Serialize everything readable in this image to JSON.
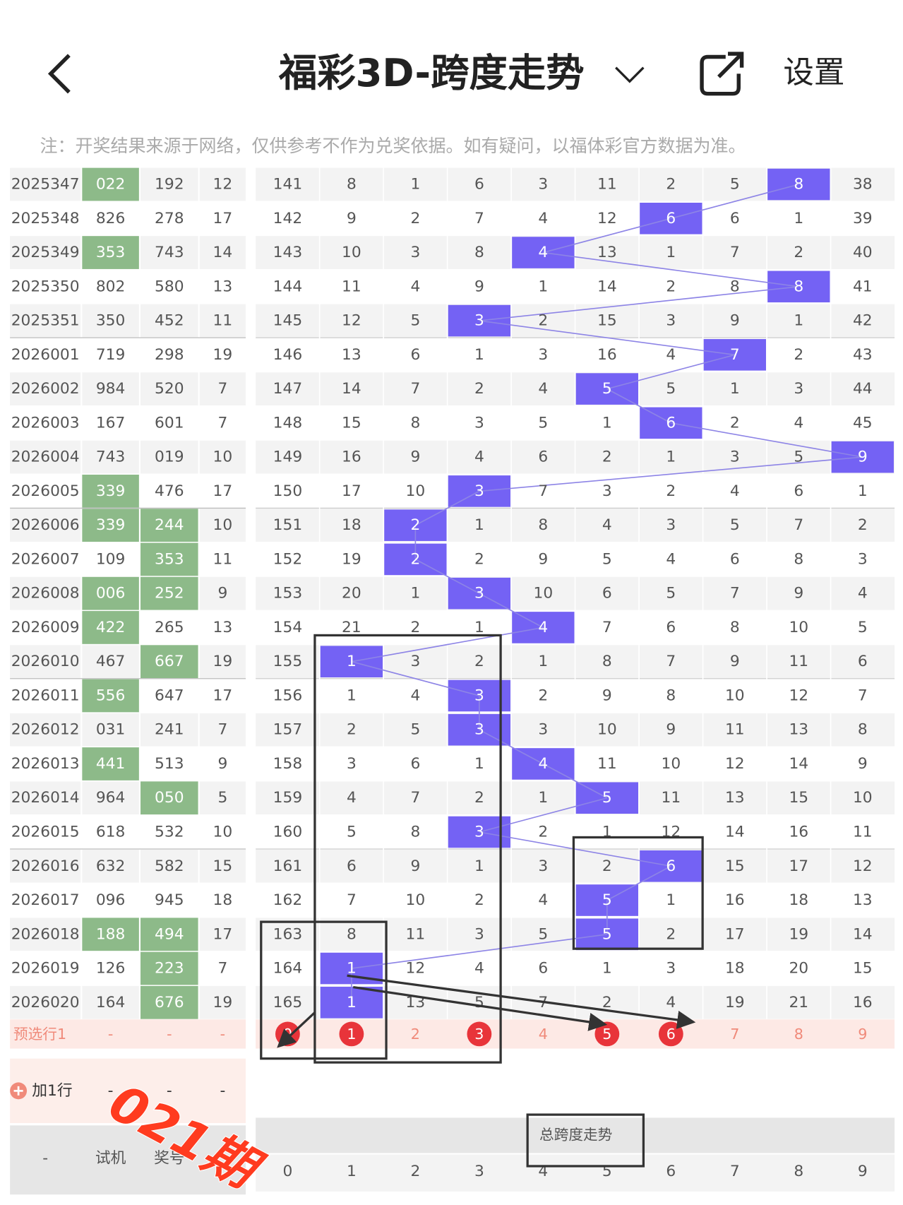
{
  "header": {
    "title": "福彩3D-跨度走势",
    "settings": "设置"
  },
  "note": "注：开奖结果来源于网络，仅供参考不作为兑奖依据。如有疑问，以福体彩官方数据为准。",
  "table": {
    "rows": [
      {
        "period": "2025347",
        "trial": "022",
        "draw": "192",
        "sum": 12,
        "cells": [
          141,
          8,
          1,
          6,
          3,
          11,
          2,
          5,
          8,
          38
        ],
        "hit": 8,
        "green": [
          "trial"
        ]
      },
      {
        "period": "2025348",
        "trial": "826",
        "draw": "278",
        "sum": 17,
        "cells": [
          142,
          9,
          2,
          7,
          4,
          12,
          6,
          6,
          1,
          39
        ],
        "hit": 6,
        "green": []
      },
      {
        "period": "2025349",
        "trial": "353",
        "draw": "743",
        "sum": 14,
        "cells": [
          143,
          10,
          3,
          8,
          4,
          13,
          1,
          7,
          2,
          40
        ],
        "hit": 4,
        "green": [
          "trial"
        ]
      },
      {
        "period": "2025350",
        "trial": "802",
        "draw": "580",
        "sum": 13,
        "cells": [
          144,
          11,
          4,
          9,
          1,
          14,
          2,
          8,
          8,
          41
        ],
        "hit": 8,
        "green": []
      },
      {
        "period": "2025351",
        "trial": "350",
        "draw": "452",
        "sum": 11,
        "cells": [
          145,
          12,
          5,
          3,
          2,
          15,
          3,
          9,
          1,
          42
        ],
        "hit": 3,
        "green": []
      },
      {
        "period": "2026001",
        "trial": "719",
        "draw": "298",
        "sum": 19,
        "cells": [
          146,
          13,
          6,
          1,
          3,
          16,
          4,
          7,
          2,
          43
        ],
        "hit": 7,
        "green": []
      },
      {
        "period": "2026002",
        "trial": "984",
        "draw": "520",
        "sum": 7,
        "cells": [
          147,
          14,
          7,
          2,
          4,
          5,
          5,
          1,
          3,
          44
        ],
        "hit": 5,
        "green": []
      },
      {
        "period": "2026003",
        "trial": "167",
        "draw": "601",
        "sum": 7,
        "cells": [
          148,
          15,
          8,
          3,
          5,
          1,
          6,
          2,
          4,
          45
        ],
        "hit": 6,
        "green": []
      },
      {
        "period": "2026004",
        "trial": "743",
        "draw": "019",
        "sum": 10,
        "cells": [
          149,
          16,
          9,
          4,
          6,
          2,
          1,
          3,
          5,
          9
        ],
        "hit": 9,
        "green": []
      },
      {
        "period": "2026005",
        "trial": "339",
        "draw": "476",
        "sum": 17,
        "cells": [
          150,
          17,
          10,
          3,
          7,
          3,
          2,
          4,
          6,
          1
        ],
        "hit": 3,
        "green": [
          "trial"
        ]
      },
      {
        "period": "2026006",
        "trial": "339",
        "draw": "244",
        "sum": 10,
        "cells": [
          151,
          18,
          2,
          1,
          8,
          4,
          3,
          5,
          7,
          2
        ],
        "hit": 2,
        "green": [
          "trial",
          "draw"
        ]
      },
      {
        "period": "2026007",
        "trial": "109",
        "draw": "353",
        "sum": 11,
        "cells": [
          152,
          19,
          2,
          2,
          9,
          5,
          4,
          6,
          8,
          3
        ],
        "hit": 2,
        "green": [
          "draw"
        ]
      },
      {
        "period": "2026008",
        "trial": "006",
        "draw": "252",
        "sum": 9,
        "cells": [
          153,
          20,
          1,
          3,
          10,
          6,
          5,
          7,
          9,
          4
        ],
        "hit": 3,
        "green": [
          "trial",
          "draw"
        ]
      },
      {
        "period": "2026009",
        "trial": "422",
        "draw": "265",
        "sum": 13,
        "cells": [
          154,
          21,
          2,
          1,
          4,
          7,
          6,
          8,
          10,
          5
        ],
        "hit": 4,
        "green": [
          "trial"
        ]
      },
      {
        "period": "2026010",
        "trial": "467",
        "draw": "667",
        "sum": 19,
        "cells": [
          155,
          1,
          3,
          2,
          1,
          8,
          7,
          9,
          11,
          6
        ],
        "hit": 1,
        "green": [
          "draw"
        ]
      },
      {
        "period": "2026011",
        "trial": "556",
        "draw": "647",
        "sum": 17,
        "cells": [
          156,
          1,
          4,
          3,
          2,
          9,
          8,
          10,
          12,
          7
        ],
        "hit": 3,
        "green": [
          "trial"
        ]
      },
      {
        "period": "2026012",
        "trial": "031",
        "draw": "241",
        "sum": 7,
        "cells": [
          157,
          2,
          5,
          3,
          3,
          10,
          9,
          11,
          13,
          8
        ],
        "hit": 3,
        "green": []
      },
      {
        "period": "2026013",
        "trial": "441",
        "draw": "513",
        "sum": 9,
        "cells": [
          158,
          3,
          6,
          1,
          4,
          11,
          10,
          12,
          14,
          9
        ],
        "hit": 4,
        "green": [
          "trial"
        ]
      },
      {
        "period": "2026014",
        "trial": "964",
        "draw": "050",
        "sum": 5,
        "cells": [
          159,
          4,
          7,
          2,
          1,
          5,
          11,
          13,
          15,
          10
        ],
        "hit": 5,
        "green": [
          "draw"
        ]
      },
      {
        "period": "2026015",
        "trial": "618",
        "draw": "532",
        "sum": 10,
        "cells": [
          160,
          5,
          8,
          3,
          2,
          1,
          12,
          14,
          16,
          11
        ],
        "hit": 3,
        "green": []
      },
      {
        "period": "2026016",
        "trial": "632",
        "draw": "582",
        "sum": 15,
        "cells": [
          161,
          6,
          9,
          1,
          3,
          2,
          6,
          15,
          17,
          12
        ],
        "hit": 6,
        "green": []
      },
      {
        "period": "2026017",
        "trial": "096",
        "draw": "945",
        "sum": 18,
        "cells": [
          162,
          7,
          10,
          2,
          4,
          5,
          1,
          16,
          18,
          13
        ],
        "hit": 5,
        "green": []
      },
      {
        "period": "2026018",
        "trial": "188",
        "draw": "494",
        "sum": 17,
        "cells": [
          163,
          8,
          11,
          3,
          5,
          5,
          2,
          17,
          19,
          14
        ],
        "hit": 5,
        "green": [
          "trial",
          "draw"
        ]
      },
      {
        "period": "2026019",
        "trial": "126",
        "draw": "223",
        "sum": 7,
        "cells": [
          164,
          1,
          12,
          4,
          6,
          1,
          3,
          18,
          20,
          15
        ],
        "hit": 1,
        "green": [
          "draw"
        ]
      },
      {
        "period": "2026020",
        "trial": "164",
        "draw": "676",
        "sum": 19,
        "cells": [
          165,
          1,
          13,
          5,
          7,
          2,
          4,
          19,
          21,
          16
        ],
        "hit": 1,
        "green": [
          "draw"
        ]
      }
    ]
  },
  "preselect": {
    "label": "预选行1",
    "values": [
      "-",
      "-",
      "-"
    ],
    "digits": [
      0,
      1,
      2,
      3,
      4,
      5,
      6,
      7,
      8,
      9
    ],
    "selected": [
      0,
      1,
      3,
      5,
      6
    ]
  },
  "add_row": {
    "label": "加1行",
    "values": [
      "-",
      "-",
      "-"
    ]
  },
  "footer": {
    "labels": [
      "-",
      "试机",
      "奖号"
    ],
    "banner": "总跨度走势",
    "digits": [
      0,
      1,
      2,
      3,
      4,
      5,
      6,
      7,
      8,
      9
    ]
  },
  "annotation": "021期"
}
